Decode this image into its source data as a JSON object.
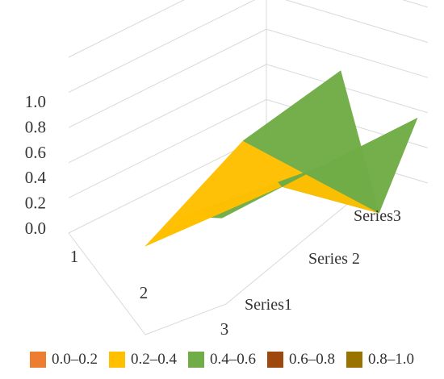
{
  "chart_data": {
    "type": "surface",
    "z_axis": {
      "range": [
        0.0,
        1.0
      ],
      "ticks": [
        "0.0",
        "0.2",
        "0.4",
        "0.6",
        "0.8",
        "1.0"
      ]
    },
    "categories": [
      "1",
      "2",
      "3"
    ],
    "series": [
      {
        "name": "Series1",
        "values": [
          0.1,
          0.38,
          0.48
        ]
      },
      {
        "name": "Series 2",
        "values": [
          0.55,
          0.4,
          0.62
        ]
      },
      {
        "name": "Series3",
        "values": [
          0.8,
          0.1,
          0.75
        ]
      }
    ],
    "legend": {
      "position": "bottom",
      "bands": [
        {
          "label": "0.0–0.2",
          "color": "#ED7D31"
        },
        {
          "label": "0.2–0.4",
          "color": "#FFC000"
        },
        {
          "label": "0.4–0.6",
          "color": "#70AD47"
        },
        {
          "label": "0.6–0.8",
          "color": "#9E480E"
        },
        {
          "label": "0.8–1.0",
          "color": "#997300"
        }
      ]
    },
    "grid": true
  }
}
